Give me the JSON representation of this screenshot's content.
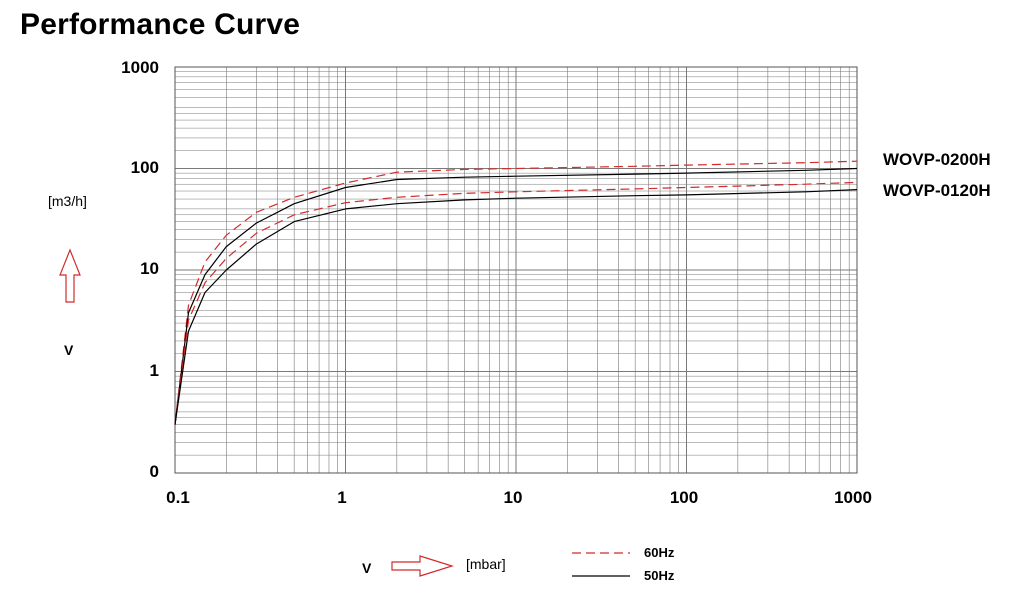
{
  "title": "Performance Curve",
  "colors": {
    "hz60": "#d22b2b",
    "hz50": "#000000",
    "arrow": "#d22b2b",
    "grid": "#7a7a7a"
  },
  "axes": {
    "y_unit": "[m3/h]",
    "y_var": "V",
    "x_var": "V",
    "x_unit": "[mbar]"
  },
  "legend": {
    "dashed_label": "60Hz",
    "solid_label": "50Hz"
  },
  "chart_data": {
    "type": "line",
    "title": "Performance Curve",
    "xscale": "log",
    "yscale": "log",
    "xlim": [
      0.1,
      1000
    ],
    "ylim": [
      0,
      1000
    ],
    "x_ticks": [
      "0.1",
      "1",
      "10",
      "100",
      "1000"
    ],
    "y_ticks": [
      "0",
      "1",
      "10",
      "100",
      "1000"
    ],
    "grid": true,
    "curve_labels": [
      "WOVP-0200H",
      "WOVP-0120H"
    ],
    "series": [
      {
        "name": "WOVP-0200H",
        "style": "60Hz",
        "x": [
          0.1,
          0.12,
          0.15,
          0.2,
          0.3,
          0.5,
          1,
          2,
          5,
          10,
          50,
          100,
          500,
          1000
        ],
        "y": [
          0.3,
          4.5,
          12,
          22,
          37,
          52,
          72,
          92,
          98,
          100,
          105,
          108,
          114,
          118
        ]
      },
      {
        "name": "WOVP-0200H",
        "style": "50Hz",
        "x": [
          0.1,
          0.12,
          0.15,
          0.2,
          0.3,
          0.5,
          1,
          2,
          5,
          10,
          50,
          100,
          500,
          1000
        ],
        "y": [
          0.3,
          3.8,
          9,
          17,
          29,
          45,
          65,
          78,
          82,
          84,
          88,
          90,
          96,
          100
        ]
      },
      {
        "name": "WOVP-0120H",
        "style": "60Hz",
        "x": [
          0.1,
          0.12,
          0.15,
          0.2,
          0.3,
          0.5,
          1,
          2,
          5,
          10,
          50,
          100,
          500,
          1000
        ],
        "y": [
          0.3,
          3.2,
          7.5,
          13,
          23,
          35,
          46,
          52,
          57,
          59,
          63,
          65,
          70,
          73
        ]
      },
      {
        "name": "WOVP-0120H",
        "style": "50Hz",
        "x": [
          0.1,
          0.12,
          0.15,
          0.2,
          0.3,
          0.5,
          1,
          2,
          5,
          10,
          50,
          100,
          500,
          1000
        ],
        "y": [
          0.3,
          2.5,
          6,
          10,
          18,
          30,
          40,
          45,
          49,
          51,
          54,
          55,
          59,
          62
        ]
      }
    ]
  }
}
